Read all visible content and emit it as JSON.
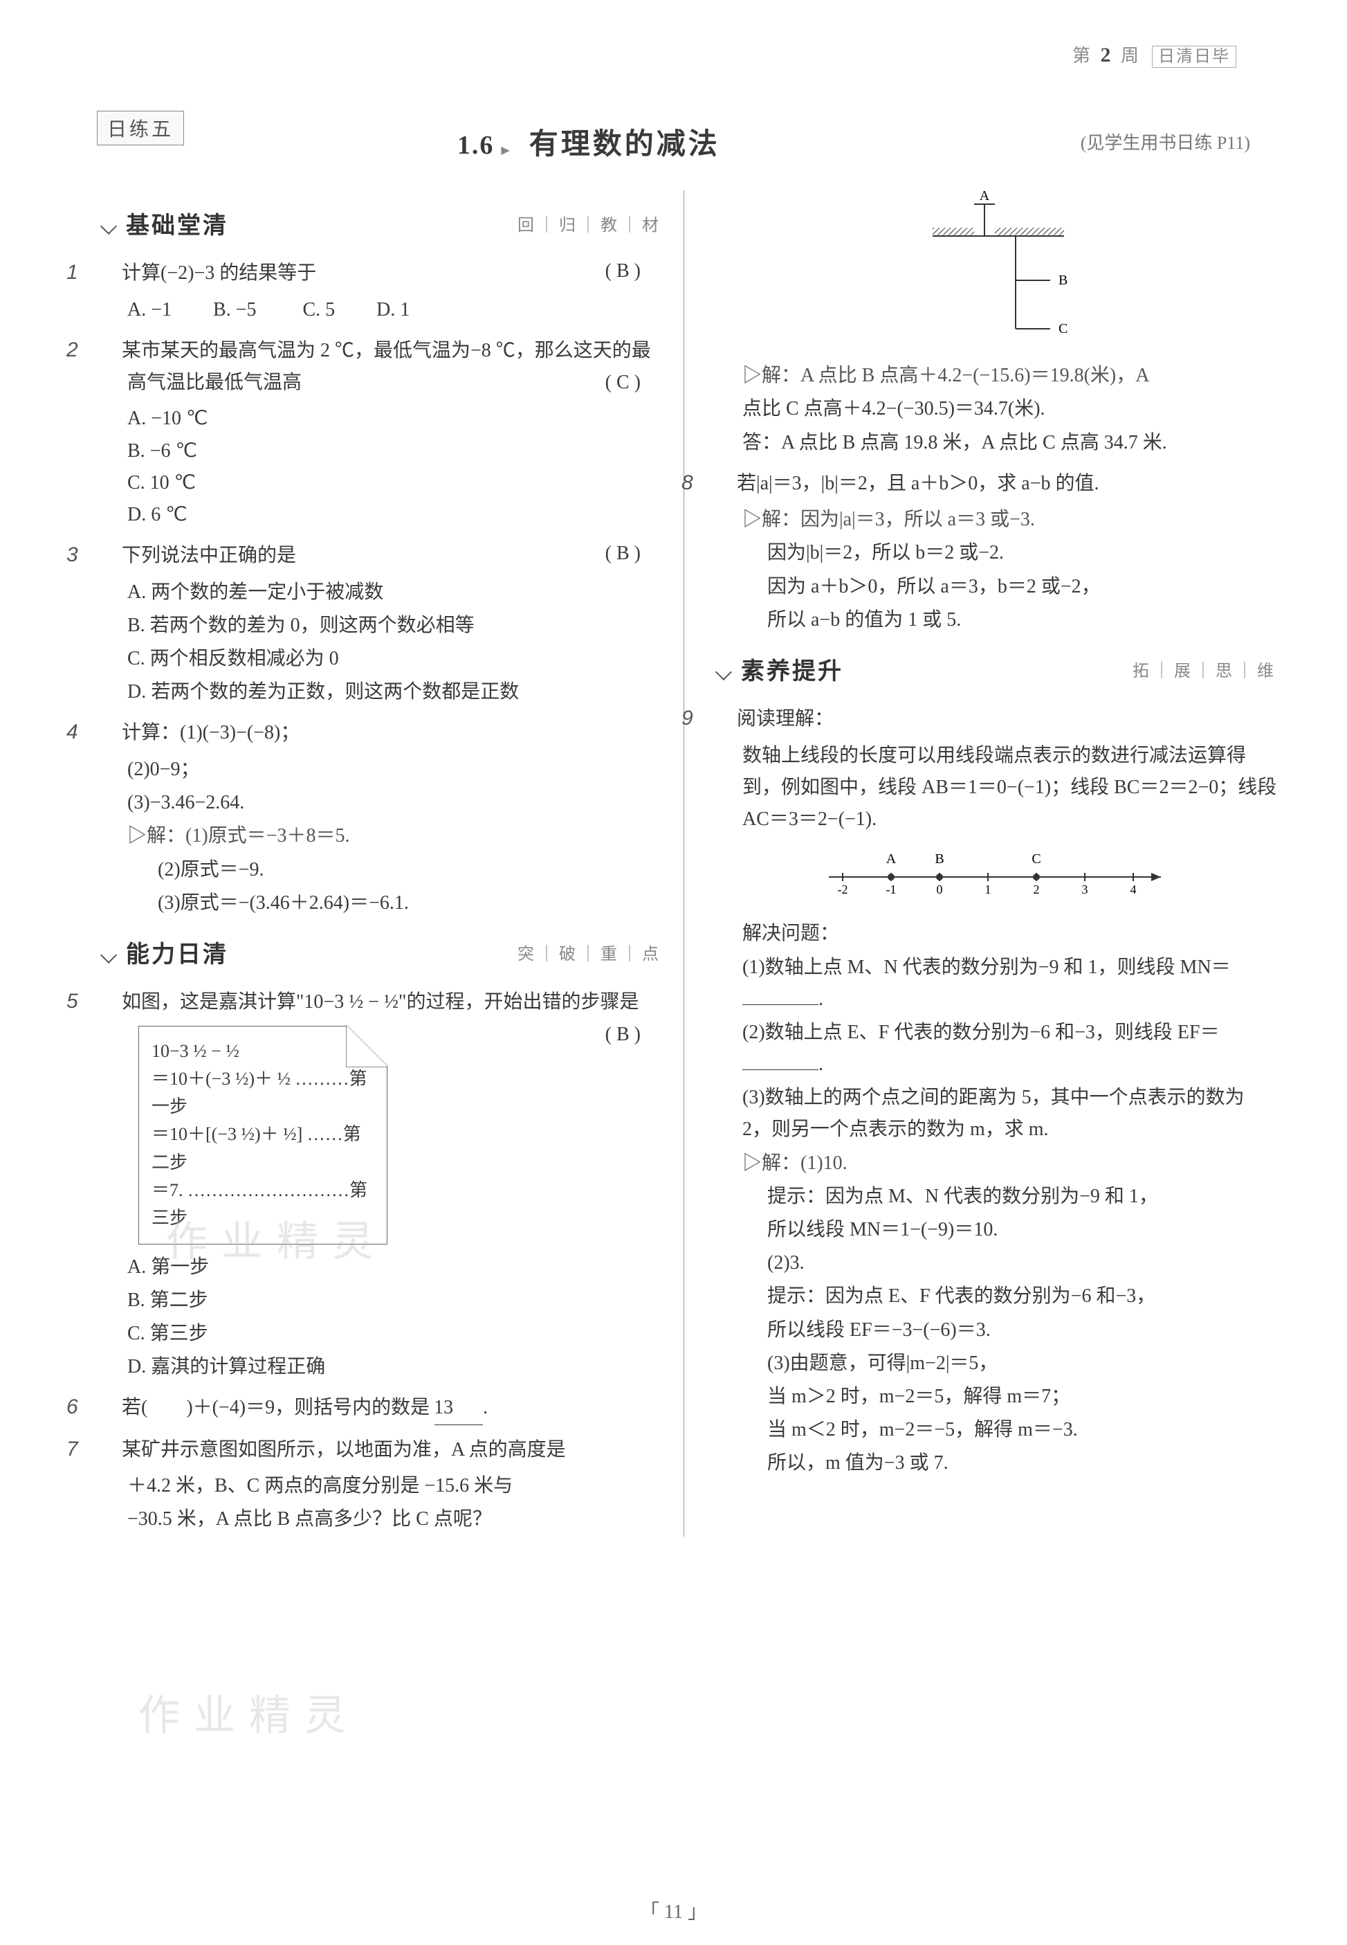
{
  "header": {
    "pre": "第",
    "num": "2",
    "mid": "周",
    "tag": "日清日毕"
  },
  "dayTag": "日练五",
  "section": {
    "num": "1.6",
    "sep": "▶",
    "title": "有理数的减法",
    "ref": "(见学生用书日练 P11)"
  },
  "heads": {
    "h1": "基础堂清",
    "h1sub": "回｜归｜教｜材",
    "h2": "能力日清",
    "h2sub": "突｜破｜重｜点",
    "h3": "素养提升",
    "h3sub": "拓｜展｜思｜维"
  },
  "q1": {
    "num": "1",
    "text": "计算(−2)−3 的结果等于",
    "ans": "( B )",
    "A": "A. −1",
    "B": "B. −5",
    "C": "C. 5",
    "D": "D. 1"
  },
  "q2": {
    "num": "2",
    "text": "某市某天的最高气温为 2 ℃，最低气温为−8 ℃，那么这天的最高气温比最低气温高",
    "ans": "( C )",
    "A": "A. −10 ℃",
    "B": "B. −6 ℃",
    "C": "C. 10 ℃",
    "D": "D. 6 ℃"
  },
  "q3": {
    "num": "3",
    "text": "下列说法中正确的是",
    "ans": "( B )",
    "A": "A. 两个数的差一定小于被减数",
    "B": "B. 若两个数的差为 0，则这两个数必相等",
    "C": "C. 两个相反数相减必为 0",
    "D": "D. 若两个数的差为正数，则这两个数都是正数"
  },
  "q4": {
    "num": "4",
    "text": "计算：(1)(−3)−(−8)；",
    "p2": "(2)0−9；",
    "p3": "(3)−3.46−2.64.",
    "s0": "▷解：(1)原式＝−3＋8＝5.",
    "s1": "(2)原式＝−9.",
    "s2": "(3)原式＝−(3.46＋2.64)＝−6.1."
  },
  "q5": {
    "num": "5",
    "text": "如图，这是嘉淇计算\"10−3 ½ − ½\"的过程，开始出错的步骤是",
    "ans": "( B )",
    "box_l1": "10−3 ½ − ½",
    "box_l2": "＝10＋(−3 ½)＋ ½ ………第一步",
    "box_l3": "＝10＋[(−3 ½)＋ ½] ……第二步",
    "box_l4": "＝7. ………………………第三步",
    "A": "A. 第一步",
    "B": "B. 第二步",
    "C": "C. 第三步",
    "D": "D. 嘉淇的计算过程正确"
  },
  "q6": {
    "num": "6",
    "text": "若(　　)＋(−4)＝9，则括号内的数是",
    "ans": "13",
    "tail": "."
  },
  "q7": {
    "num": "7",
    "l1": "某矿井示意图如图所示，以地面为准，A 点的高度是",
    "l2": "＋4.2 米，B、C 两点的高度分别是 −15.6 米与",
    "l3": "−30.5 米，A 点比 B 点高多少？比 C 点呢？",
    "diagram_labels": {
      "A": "A",
      "B": "B",
      "C": "C"
    },
    "s1": "▷解：A 点比 B 点高＋4.2−(−15.6)＝19.8(米)，A",
    "s2": "点比 C 点高＋4.2−(−30.5)＝34.7(米).",
    "s3": "答：A 点比 B 点高 19.8 米，A 点比 C 点高 34.7 米."
  },
  "q8": {
    "num": "8",
    "text": "若|a|＝3，|b|＝2，且 a＋b＞0，求 a−b 的值.",
    "s1": "▷解：因为|a|＝3，所以 a＝3 或−3.",
    "s2": "因为|b|＝2，所以 b＝2 或−2.",
    "s3": "因为 a＋b＞0，所以 a＝3，b＝2 或−2，",
    "s4": "所以 a−b 的值为 1 或 5."
  },
  "q9": {
    "num": "9",
    "head": "阅读理解：",
    "p1": "数轴上线段的长度可以用线段端点表示的数进行减法运算得到，例如图中，线段 AB＝1＝0−(−1)；线段 BC＝2＝2−0；线段 AC＝3＝2−(−1).",
    "nl_ticks": [
      "-2",
      "-1",
      "0",
      "1",
      "2",
      "3",
      "4"
    ],
    "nl_A": "A",
    "nl_B": "B",
    "nl_C": "C",
    "solve": "解决问题：",
    "i1": "(1)数轴上点 M、N 代表的数分别为−9 和 1，则线段 MN＝",
    "i1tail": ".",
    "i2": "(2)数轴上点 E、F 代表的数分别为−6 和−3，则线段 EF＝",
    "i2tail": ".",
    "i3": "(3)数轴上的两个点之间的距离为 5，其中一个点表示的数为 2，则另一个点表示的数为 m，求 m.",
    "s_head": "▷解：(1)10.",
    "s1": "提示：因为点 M、N 代表的数分别为−9 和 1，",
    "s2": "所以线段 MN＝1−(−9)＝10.",
    "s3": "(2)3.",
    "s4": "提示：因为点 E、F 代表的数分别为−6 和−3，",
    "s5": "所以线段 EF＝−3−(−6)＝3.",
    "s6": "(3)由题意，可得|m−2|＝5，",
    "s7": "当 m＞2 时，m−2＝5，解得 m＝7；",
    "s8": "当 m＜2 时，m−2＝−5，解得 m＝−3.",
    "s9": "所以，m 值为−3 或 7."
  },
  "pageNum": "11"
}
